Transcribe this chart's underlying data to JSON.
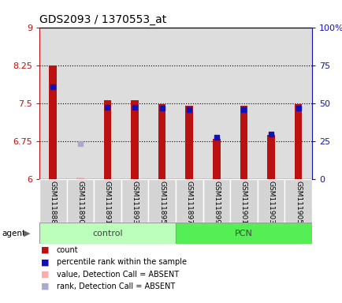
{
  "title": "GDS2093 / 1370553_at",
  "samples": [
    "GSM111888",
    "GSM111890",
    "GSM111891",
    "GSM111893",
    "GSM111895",
    "GSM111897",
    "GSM111899",
    "GSM111901",
    "GSM111903",
    "GSM111905"
  ],
  "red_values": [
    8.25,
    null,
    7.55,
    7.55,
    7.47,
    7.45,
    6.79,
    7.45,
    6.87,
    7.47
  ],
  "blue_values": [
    7.82,
    null,
    7.42,
    7.42,
    7.4,
    7.37,
    6.82,
    7.37,
    6.88,
    7.4
  ],
  "absent_red": [
    null,
    6.02,
    null,
    null,
    null,
    null,
    null,
    null,
    null,
    null
  ],
  "absent_blue": [
    null,
    6.69,
    null,
    null,
    null,
    null,
    null,
    null,
    null,
    null
  ],
  "ylim": [
    6,
    9
  ],
  "yticks_left": [
    6,
    6.75,
    7.5,
    8.25,
    9
  ],
  "yticks_right": [
    0,
    25,
    50,
    75,
    100
  ],
  "yticks_right_labels": [
    "0",
    "25",
    "50",
    "75",
    "100%"
  ],
  "hlines": [
    6.75,
    7.5,
    8.25
  ],
  "red_color": "#bb1111",
  "blue_color": "#1111bb",
  "absent_red_color": "#ffaaaa",
  "absent_blue_color": "#aaaacc",
  "control_color": "#bbffbb",
  "pcn_color": "#55ee55",
  "plot_bg": "#ffffff",
  "col_bg": "#dddddd",
  "group_label_control": "control",
  "group_label_pcn": "PCN",
  "legend_items": [
    {
      "color": "#bb1111",
      "label": "count"
    },
    {
      "color": "#1111bb",
      "label": "percentile rank within the sample"
    },
    {
      "color": "#ffaaaa",
      "label": "value, Detection Call = ABSENT"
    },
    {
      "color": "#aaaacc",
      "label": "rank, Detection Call = ABSENT"
    }
  ]
}
